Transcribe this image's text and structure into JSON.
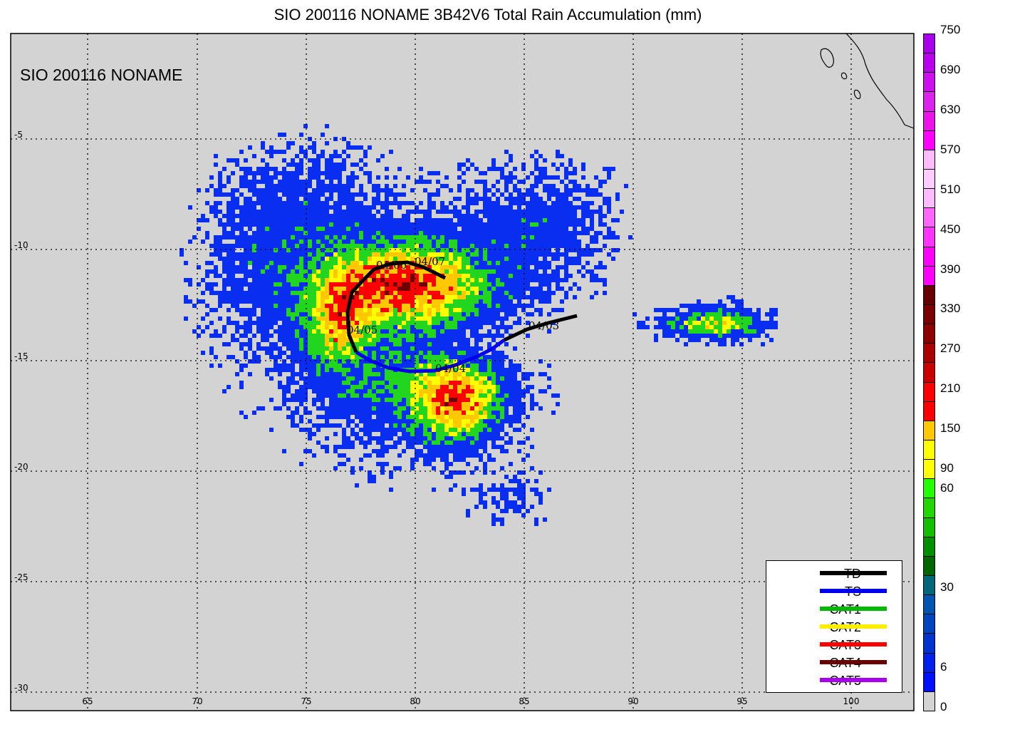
{
  "title": "SIO 200116 NONAME 3B42V6 Total Rain Accumulation (mm)",
  "map_label": "SIO 200116 NONAME",
  "lon_ticks": [
    "65",
    "70",
    "75",
    "80",
    "85",
    "90",
    "95",
    "100"
  ],
  "lat_ticks": [
    "-5",
    "-10",
    "-15",
    "-20",
    "-25",
    "-30"
  ],
  "colors": {
    "land_gray": "#d3d3d3",
    "blue": "#0a2ef0",
    "green": "#22d620",
    "yellow": "#ffff00",
    "orange": "#ffc800",
    "red": "#ff0000",
    "darkred": "#6e0000"
  },
  "colorbar": {
    "labels": [
      "750",
      "690",
      "630",
      "570",
      "510",
      "450",
      "390",
      "330",
      "270",
      "210",
      "150",
      "90",
      "60",
      "30",
      "6",
      "0"
    ],
    "segments": [
      "#aa00ee",
      "#bb00ee",
      "#cc11ee",
      "#dd22ee",
      "#ee11ee",
      "#ff00ff",
      "#ffbbff",
      "#ffccff",
      "#ffbbff",
      "#ff66ff",
      "#ff33ff",
      "#ff00ff",
      "#ff00ff",
      "#660000",
      "#7a0000",
      "#900000",
      "#aa0000",
      "#cc0000",
      "#ff0000",
      "#ff0000",
      "#ffc800",
      "#ffff00",
      "#ffff00",
      "#22ff00",
      "#22d600",
      "#11c000",
      "#008f00",
      "#006600",
      "#006878",
      "#0055b0",
      "#0044c0",
      "#0033d0",
      "#0022ee",
      "#0011ff",
      "#d3d3d3"
    ]
  },
  "track_labels": [
    "04/03",
    "04/04",
    "04/05",
    "04/06",
    "04/07"
  ],
  "legend": [
    {
      "label": "TD",
      "color": "#000000"
    },
    {
      "label": "TS",
      "color": "#0000ee"
    },
    {
      "label": "CAT1",
      "color": "#00bb00"
    },
    {
      "label": "CAT2",
      "color": "#ffee00"
    },
    {
      "label": "CAT3",
      "color": "#ff0000"
    },
    {
      "label": "CAT4",
      "color": "#660000"
    },
    {
      "label": "CAT5",
      "color": "#aa00ee"
    }
  ]
}
